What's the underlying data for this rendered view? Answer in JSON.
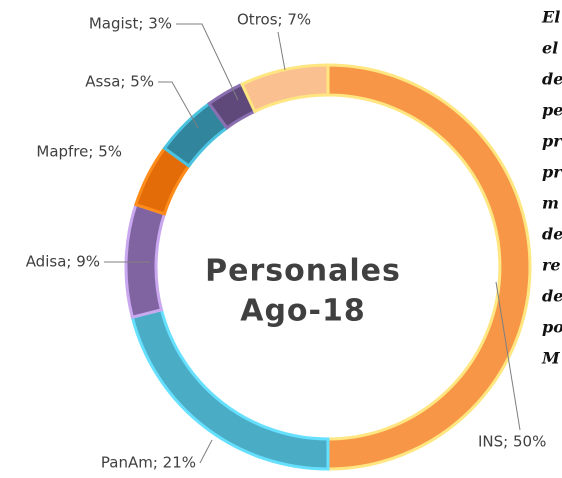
{
  "chart_data": {
    "type": "donut",
    "title": "Personales",
    "subtitle": "Ago-18",
    "values": [
      50,
      21,
      9,
      5,
      5,
      3,
      7
    ],
    "value_labels": [
      "INS; 50%",
      "PanAm; 21%",
      "Adisa; 9%",
      "Mapfre; 5%",
      "Assa; 5%",
      "Magist; 3%",
      "Otros; 7%"
    ],
    "colors": [
      "#f79646",
      "#4bacc6",
      "#8064a2",
      "#e36c09",
      "#31859c",
      "#5f497a",
      "#fac090"
    ],
    "edge_colors": [
      "#ffe680",
      "#66e0ff",
      "#c9a8ef",
      "#ff8c1a",
      "#4bc3e0",
      "#8a6fb0",
      "#ffe680"
    ]
  },
  "side_text": [
    "El",
    "el",
    "de",
    "pe",
    "pr",
    "pr",
    "m",
    "de",
    "re",
    "de",
    "po",
    "M"
  ]
}
